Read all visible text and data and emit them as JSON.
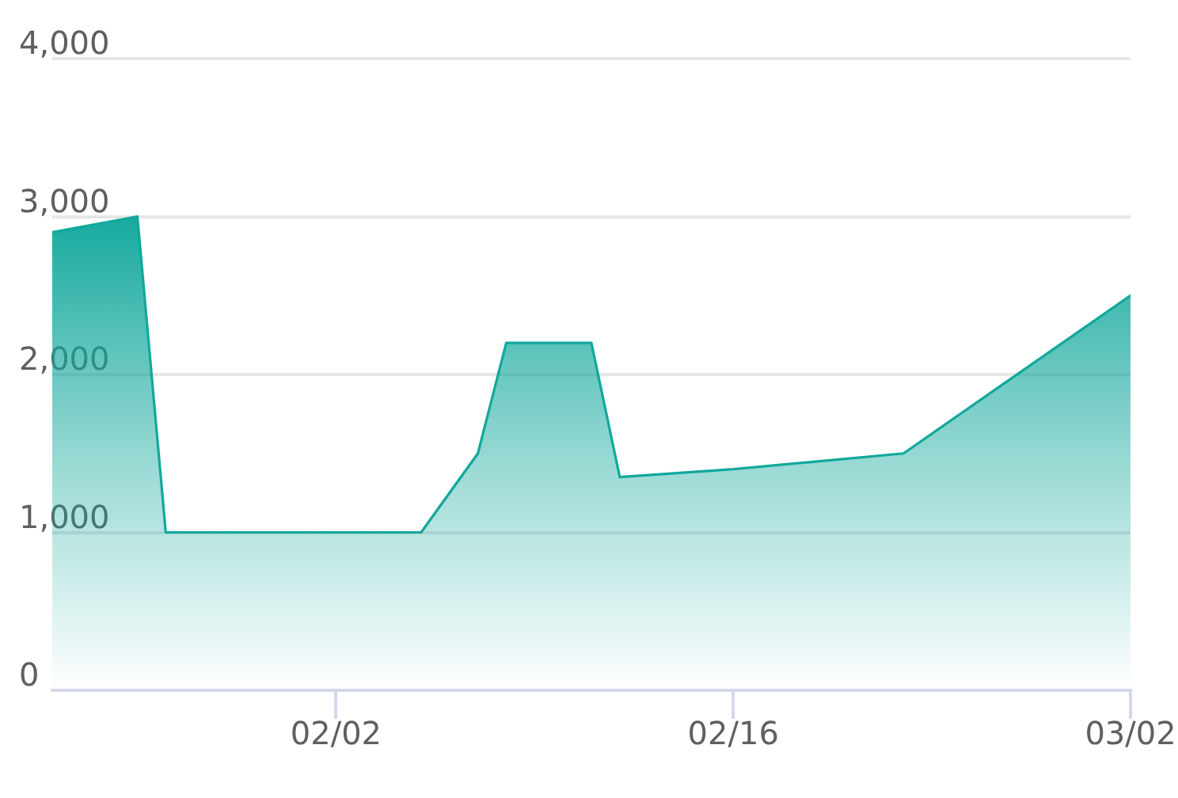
{
  "chart_data": {
    "type": "area",
    "x": [
      "--01-23",
      "--01-26",
      "--01-27",
      "--02-05",
      "--02-07",
      "--02-08",
      "--02-11",
      "--02-12",
      "--02-16",
      "--02-22",
      "--03-02"
    ],
    "values": [
      2900,
      3000,
      1000,
      1000,
      1500,
      2200,
      2200,
      1350,
      1400,
      1500,
      2500
    ],
    "color": "#12a89c",
    "xlim": [
      "--01-23",
      "--03-02"
    ],
    "xticks": [
      {
        "value": "--02-02",
        "label": "02/02"
      },
      {
        "value": "--02-16",
        "label": "02/16"
      },
      {
        "value": "--03-02",
        "label": "03/02"
      }
    ],
    "ylim": [
      0,
      4000
    ],
    "yticks": [
      0,
      {
        "value": 1000,
        "label": "1,000"
      },
      {
        "value": 2000,
        "label": "2,000"
      },
      {
        "value": 3000,
        "label": "3,000"
      },
      {
        "value": 4000,
        "label": "4,000"
      }
    ],
    "grid": "y",
    "legend": false,
    "marker": "none",
    "line_style": "solid"
  }
}
